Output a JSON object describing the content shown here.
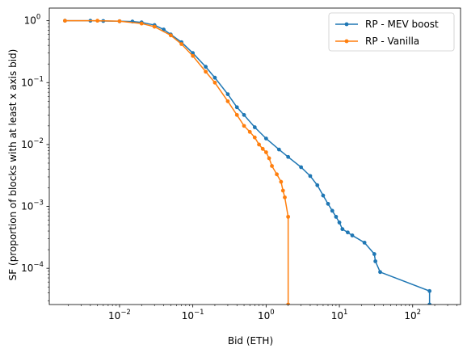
{
  "chart_data": {
    "type": "line",
    "xlabel": "Bid (ETH)",
    "ylabel": "SF (proportion of blocks with at least x axis bid)",
    "xscale": "log",
    "yscale": "log",
    "xlim": [
      0.0011,
      450
    ],
    "ylim": [
      2.6e-05,
      1.6
    ],
    "x_ticks": [
      {
        "value": 0.01,
        "base": "10",
        "exp": "−2"
      },
      {
        "value": 0.1,
        "base": "10",
        "exp": "−1"
      },
      {
        "value": 1,
        "base": "10",
        "exp": "0"
      },
      {
        "value": 10,
        "base": "10",
        "exp": "1"
      },
      {
        "value": 100,
        "base": "10",
        "exp": "2"
      }
    ],
    "y_ticks": [
      {
        "value": 1,
        "base": "10",
        "exp": "0"
      },
      {
        "value": 0.1,
        "base": "10",
        "exp": "−1"
      },
      {
        "value": 0.01,
        "base": "10",
        "exp": "−2"
      },
      {
        "value": 0.001,
        "base": "10",
        "exp": "−3"
      },
      {
        "value": 0.0001,
        "base": "10",
        "exp": "−4"
      }
    ],
    "grid": false,
    "legend_position": "top-right",
    "series": [
      {
        "name": "RP - MEV boost",
        "color": "#1f77b4",
        "x": [
          0.0018,
          0.004,
          0.006,
          0.01,
          0.015,
          0.02,
          0.03,
          0.04,
          0.05,
          0.07,
          0.1,
          0.15,
          0.2,
          0.3,
          0.4,
          0.5,
          0.7,
          1.0,
          1.5,
          2.0,
          3.0,
          4.0,
          5.0,
          6.0,
          7.0,
          8.0,
          9.0,
          10.0,
          11.0,
          13.0,
          15.0,
          22.0,
          30.0,
          31.0,
          36.0,
          170.0,
          170.0
        ],
        "y": [
          1.0,
          1.0,
          0.99,
          0.98,
          0.97,
          0.94,
          0.85,
          0.72,
          0.6,
          0.45,
          0.3,
          0.18,
          0.12,
          0.065,
          0.04,
          0.03,
          0.019,
          0.0125,
          0.0083,
          0.0063,
          0.0043,
          0.0031,
          0.0022,
          0.0015,
          0.0011,
          0.00085,
          0.00068,
          0.00055,
          0.00043,
          0.00038,
          0.00034,
          0.00026,
          0.00017,
          0.00013,
          8.7e-05,
          4.3e-05,
          2.6e-05
        ]
      },
      {
        "name": "RP - Vanilla",
        "color": "#ff7f0e",
        "x": [
          0.0018,
          0.005,
          0.01,
          0.02,
          0.03,
          0.05,
          0.07,
          0.1,
          0.15,
          0.2,
          0.3,
          0.4,
          0.5,
          0.6,
          0.7,
          0.8,
          0.9,
          1.0,
          1.1,
          1.2,
          1.4,
          1.6,
          1.7,
          1.8,
          2.0,
          2.0
        ],
        "y": [
          1.0,
          1.0,
          0.98,
          0.9,
          0.8,
          0.58,
          0.42,
          0.27,
          0.15,
          0.1,
          0.05,
          0.03,
          0.02,
          0.016,
          0.013,
          0.01,
          0.0085,
          0.0075,
          0.006,
          0.0045,
          0.0033,
          0.0025,
          0.0018,
          0.0014,
          0.00068,
          2.6e-05
        ]
      }
    ]
  }
}
